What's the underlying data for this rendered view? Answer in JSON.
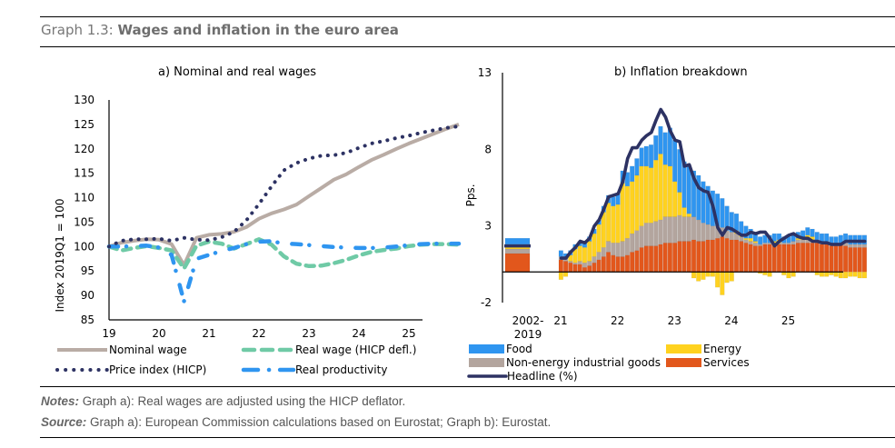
{
  "header": {
    "prefix": "Graph 1.3: ",
    "title": "Wages and inflation in the euro area"
  },
  "notes": {
    "notes_label": "Notes:",
    "notes_text": " Graph a): Real wages are adjusted using the HICP deflator.",
    "source_label": "Source:",
    "source_text": " Graph a): European Commission calculations based on Eurostat; Graph b): Eurostat."
  },
  "chart_data": [
    {
      "type": "line",
      "title": "a) Nominal and real wages",
      "xlabel": "",
      "ylabel": "Index 2019Q1 = 100",
      "ylim": [
        85,
        130
      ],
      "yticks": [
        85,
        90,
        95,
        100,
        105,
        110,
        115,
        120,
        125,
        130
      ],
      "xticks": [
        "19",
        "20",
        "21",
        "22",
        "23",
        "24",
        "25"
      ],
      "x_start": 2019.0,
      "x_step": 0.25,
      "legend_position": "bottom",
      "series": [
        {
          "name": "Nominal wage",
          "color": "#b9aca5",
          "style": "solid",
          "values": [
            100,
            100.8,
            101.2,
            101.5,
            101.4,
            100.5,
            96.2,
            101.8,
            102.4,
            102.6,
            103.0,
            104.0,
            105.7,
            106.8,
            107.6,
            108.6,
            110.3,
            112.0,
            113.7,
            114.8,
            116.3,
            117.7,
            118.8,
            120.0,
            121.1,
            122.1,
            123.1,
            124.1,
            125.0
          ]
        },
        {
          "name": "Real wage (HICP defl.)",
          "color": "#6fcaa6",
          "style": "dash",
          "values": [
            100,
            99.2,
            99.7,
            100.1,
            99.7,
            99.2,
            95.5,
            100.2,
            101.0,
            100.6,
            99.6,
            100.5,
            101.5,
            100.4,
            98.0,
            96.5,
            96.0,
            96.1,
            96.6,
            97.3,
            98.2,
            98.9,
            99.3,
            99.6,
            100.1,
            100.4,
            100.5,
            100.5,
            100.4
          ]
        },
        {
          "name": "Price index (HICP)",
          "color": "#2d3263",
          "style": "dot",
          "values": [
            100,
            101.2,
            101.5,
            101.5,
            101.6,
            101.2,
            101.8,
            101.4,
            101.3,
            101.9,
            103.0,
            105.4,
            108.7,
            112.3,
            115.6,
            117.1,
            118.0,
            118.6,
            118.7,
            119.2,
            120.2,
            121.1,
            121.6,
            122.2,
            122.7,
            123.3,
            123.8,
            124.3,
            124.6
          ]
        },
        {
          "name": "Real productivity",
          "color": "#2f95f0",
          "style": "dashdot",
          "values": [
            100,
            100,
            100.1,
            100.2,
            99.8,
            98.3,
            88.8,
            97.5,
            98.3,
            99.1,
            99.7,
            100.5,
            101.0,
            101.1,
            100.6,
            100.5,
            100.3,
            100.1,
            99.9,
            99.8,
            99.7,
            99.7,
            99.8,
            100.0,
            100.3,
            100.5,
            100.6,
            100.6,
            100.6
          ]
        }
      ]
    },
    {
      "type": "bar",
      "stacked": true,
      "title": "b) Inflation breakdown",
      "xlabel": "",
      "ylabel": "Pps.",
      "ylim": [
        -2,
        13
      ],
      "yticks": [
        -2,
        3,
        8,
        13
      ],
      "xticks": [
        "2002-\n2019",
        "21",
        "22",
        "23",
        "24",
        "25"
      ],
      "legend_position": "bottom",
      "baseline_category": "2002-2019",
      "baseline": {
        "Services": 1.2,
        "Non-energy industrial goods": 0.3,
        "Energy": 0.3,
        "Food": 0.4,
        "Headline": 1.7
      },
      "monthly_start": "2021-01",
      "series_colors": {
        "Food": "#2f95f0",
        "Energy": "#ffd21f",
        "Non-energy industrial goods": "#b3a59e",
        "Services": "#e2571c",
        "Headline": "#2d3263"
      },
      "series": [
        {
          "name": "Services",
          "values": [
            0.8,
            0.7,
            0.6,
            0.5,
            0.5,
            0.3,
            0.4,
            0.6,
            0.8,
            1.0,
            1.3,
            1.1,
            1.0,
            1.0,
            1.1,
            1.3,
            1.4,
            1.6,
            1.7,
            1.7,
            1.7,
            1.8,
            1.9,
            1.9,
            1.9,
            2.0,
            2.0,
            2.0,
            2.1,
            2.0,
            2.0,
            2.1,
            2.1,
            2.2,
            2.3,
            2.2,
            2.1,
            2.1,
            2.0,
            1.9,
            1.8,
            1.7,
            1.7,
            1.8,
            1.8,
            1.8,
            1.8,
            1.8,
            1.8,
            1.8,
            1.9,
            1.9,
            1.9,
            1.9,
            1.9,
            1.8,
            1.8,
            1.7,
            1.7,
            1.8,
            1.7,
            1.6,
            1.6,
            1.6,
            1.6
          ]
        },
        {
          "name": "Non-energy industrial goods",
          "values": [
            0.2,
            0.2,
            0.1,
            0.1,
            0.2,
            0.3,
            0.3,
            0.4,
            0.5,
            0.6,
            0.7,
            0.8,
            0.9,
            1.0,
            1.1,
            1.2,
            1.3,
            1.4,
            1.5,
            1.5,
            1.6,
            1.6,
            1.7,
            1.7,
            1.7,
            1.7,
            1.6,
            1.6,
            1.5,
            1.4,
            1.2,
            1.0,
            0.9,
            0.8,
            0.6,
            0.5,
            0.5,
            0.4,
            0.3,
            0.2,
            0.2,
            0.2,
            0.1,
            0.1,
            0.1,
            0.1,
            0.1,
            0.1,
            0.1,
            0.2,
            0.2,
            0.2,
            0.2,
            0.2,
            0.2,
            0.2,
            0.2,
            0.1,
            0.1,
            0.1,
            0.2,
            0.2,
            0.2,
            0.2,
            0.2
          ]
        },
        {
          "name": "Energy",
          "values": [
            -0.5,
            -0.3,
            0.4,
            0.9,
            1.0,
            1.0,
            1.3,
            1.5,
            1.8,
            2.3,
            2.5,
            2.4,
            2.5,
            3.8,
            3.4,
            3.4,
            3.6,
            3.9,
            3.7,
            3.6,
            4.0,
            4.3,
            3.4,
            3.3,
            2.3,
            1.5,
            0.6,
            0.2,
            -0.4,
            -0.6,
            -0.5,
            -0.3,
            -0.3,
            -1.0,
            -1.5,
            -0.7,
            -0.6,
            0.2,
            0.1,
            0.1,
            0.2,
            0.1,
            -0.1,
            -0.2,
            -0.3,
            0.1,
            0.2,
            -0.2,
            -0.4,
            -0.3,
            0.1,
            0.2,
            0.3,
            0.2,
            -0.2,
            -0.3,
            -0.3,
            -0.2,
            -0.3,
            -0.4,
            -0.4,
            -0.3,
            -0.3,
            -0.4,
            -0.4
          ]
        },
        {
          "name": "Food",
          "values": [
            0.4,
            0.3,
            0.3,
            0.3,
            0.3,
            0.3,
            0.3,
            0.3,
            0.3,
            0.4,
            0.5,
            0.6,
            0.7,
            0.8,
            0.9,
            1.0,
            1.1,
            1.2,
            1.3,
            1.5,
            1.6,
            1.8,
            2.1,
            2.5,
            2.7,
            2.8,
            3.0,
            3.1,
            3.0,
            2.9,
            2.7,
            2.5,
            2.3,
            2.1,
            1.9,
            1.6,
            1.3,
            1.1,
            0.9,
            0.8,
            0.6,
            0.6,
            0.5,
            0.5,
            0.5,
            0.5,
            0.4,
            0.4,
            0.4,
            0.4,
            0.4,
            0.4,
            0.5,
            0.5,
            0.5,
            0.5,
            0.5,
            0.5,
            0.5,
            0.5,
            0.6,
            0.6,
            0.6,
            0.6,
            0.6
          ]
        },
        {
          "name": "Headline",
          "type": "line",
          "values": [
            0.9,
            0.9,
            1.3,
            1.6,
            2.0,
            1.9,
            2.2,
            3.0,
            3.4,
            4.1,
            4.9,
            5.0,
            5.1,
            5.9,
            7.4,
            8.1,
            8.1,
            8.6,
            8.9,
            9.1,
            9.9,
            10.6,
            10.1,
            9.2,
            8.6,
            8.5,
            6.9,
            7.0,
            6.1,
            5.5,
            5.3,
            5.2,
            4.3,
            2.9,
            2.4,
            2.9,
            2.8,
            2.6,
            2.4,
            2.4,
            2.6,
            2.5,
            2.6,
            2.6,
            2.2,
            1.7,
            2.0,
            2.2,
            2.4,
            2.5,
            2.3,
            2.2,
            2.2,
            2.0,
            2.0,
            1.9,
            1.9,
            1.8,
            1.8,
            1.8,
            2.0,
            2.0,
            2.0,
            2.0,
            2.0
          ]
        }
      ],
      "legend": [
        "Food",
        "Energy",
        "Non-energy industrial goods",
        "Services",
        "Headline (%)"
      ]
    }
  ]
}
